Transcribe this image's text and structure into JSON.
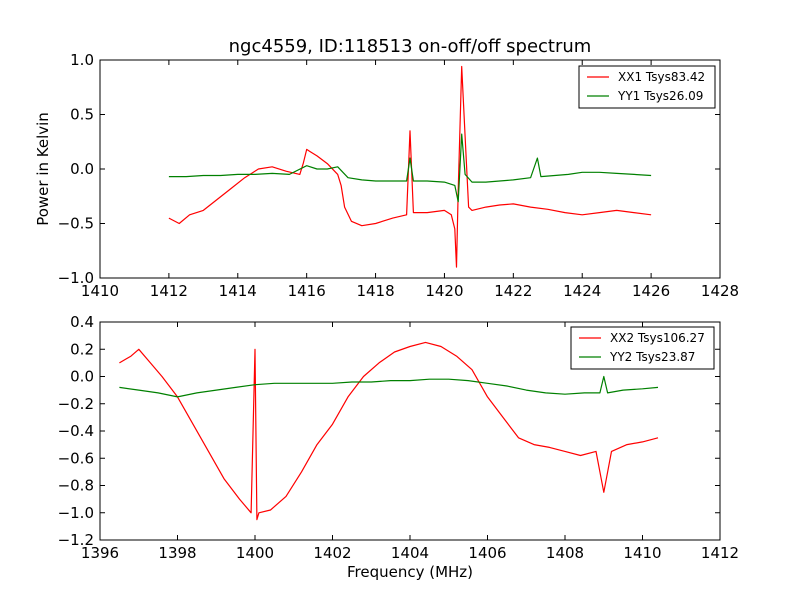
{
  "chart_data": [
    {
      "type": "line",
      "title": "ngc4559, ID:118513 on-off/off spectrum",
      "xlabel": "",
      "ylabel": "Power in Kelvin",
      "xlim": [
        1410,
        1428
      ],
      "ylim": [
        -1.0,
        1.0
      ],
      "x_ticks": [
        "1410",
        "1412",
        "1414",
        "1416",
        "1418",
        "1420",
        "1422",
        "1424",
        "1426",
        "1428"
      ],
      "y_ticks": [
        "−1.0",
        "−0.5",
        "0.0",
        "0.5",
        "1.0"
      ],
      "legend_position": "top-right",
      "grid": false,
      "series": [
        {
          "name": "XX1 Tsys83.42",
          "color": "#ff0000",
          "x": [
            1412.0,
            1412.3,
            1412.6,
            1413.0,
            1413.4,
            1413.8,
            1414.2,
            1414.6,
            1415.0,
            1415.4,
            1415.8,
            1415.9,
            1416.0,
            1416.1,
            1416.3,
            1416.6,
            1416.9,
            1417.0,
            1417.1,
            1417.3,
            1417.6,
            1418.0,
            1418.5,
            1418.9,
            1419.0,
            1419.1,
            1419.5,
            1420.0,
            1420.2,
            1420.3,
            1420.35,
            1420.4,
            1420.5,
            1420.6,
            1420.7,
            1420.8,
            1421.2,
            1421.6,
            1422.0,
            1422.5,
            1423.0,
            1423.5,
            1424.0,
            1424.5,
            1425.0,
            1425.5,
            1426.0
          ],
          "y": [
            -0.45,
            -0.5,
            -0.42,
            -0.38,
            -0.28,
            -0.18,
            -0.08,
            0.0,
            0.02,
            -0.02,
            -0.05,
            0.05,
            0.18,
            0.16,
            0.12,
            0.05,
            -0.05,
            -0.15,
            -0.35,
            -0.48,
            -0.52,
            -0.5,
            -0.45,
            -0.42,
            0.35,
            -0.4,
            -0.4,
            -0.38,
            -0.42,
            -0.55,
            -0.9,
            -0.2,
            0.94,
            0.3,
            -0.35,
            -0.38,
            -0.35,
            -0.33,
            -0.32,
            -0.35,
            -0.37,
            -0.4,
            -0.42,
            -0.4,
            -0.38,
            -0.4,
            -0.42
          ]
        },
        {
          "name": "YY1 Tsys26.09",
          "color": "#008000",
          "x": [
            1412.0,
            1412.5,
            1413.0,
            1413.5,
            1414.0,
            1414.5,
            1415.0,
            1415.5,
            1416.0,
            1416.3,
            1416.6,
            1416.9,
            1417.2,
            1417.6,
            1418.0,
            1418.5,
            1418.9,
            1419.0,
            1419.1,
            1419.5,
            1420.0,
            1420.3,
            1420.4,
            1420.5,
            1420.6,
            1420.8,
            1421.2,
            1421.6,
            1422.0,
            1422.5,
            1422.7,
            1422.8,
            1423.2,
            1423.6,
            1424.0,
            1424.5,
            1425.0,
            1425.5,
            1426.0
          ],
          "y": [
            -0.07,
            -0.07,
            -0.06,
            -0.06,
            -0.05,
            -0.05,
            -0.04,
            -0.05,
            0.03,
            0.0,
            0.0,
            0.02,
            -0.08,
            -0.1,
            -0.11,
            -0.11,
            -0.11,
            0.1,
            -0.11,
            -0.11,
            -0.12,
            -0.15,
            -0.3,
            0.32,
            -0.05,
            -0.12,
            -0.12,
            -0.11,
            -0.1,
            -0.08,
            0.1,
            -0.07,
            -0.06,
            -0.05,
            -0.03,
            -0.03,
            -0.04,
            -0.05,
            -0.06
          ]
        }
      ]
    },
    {
      "type": "line",
      "title": "",
      "xlabel": "Frequency (MHz)",
      "ylabel": "",
      "xlim": [
        1396,
        1412
      ],
      "ylim": [
        -1.2,
        0.4
      ],
      "x_ticks": [
        "1396",
        "1398",
        "1400",
        "1402",
        "1404",
        "1406",
        "1408",
        "1410",
        "1412"
      ],
      "y_ticks": [
        "−1.2",
        "−1.0",
        "−0.8",
        "−0.6",
        "−0.4",
        "−0.2",
        "0.0",
        "0.2",
        "0.4"
      ],
      "legend_position": "top-right",
      "grid": false,
      "series": [
        {
          "name": "XX2 Tsys106.27",
          "color": "#ff0000",
          "x": [
            1396.5,
            1396.8,
            1397.0,
            1397.3,
            1397.6,
            1398.0,
            1398.4,
            1398.8,
            1399.2,
            1399.6,
            1399.9,
            1400.0,
            1400.05,
            1400.1,
            1400.4,
            1400.8,
            1401.2,
            1401.6,
            1402.0,
            1402.4,
            1402.8,
            1403.2,
            1403.6,
            1404.0,
            1404.4,
            1404.8,
            1405.2,
            1405.6,
            1406.0,
            1406.4,
            1406.8,
            1407.2,
            1407.6,
            1408.0,
            1408.4,
            1408.8,
            1409.0,
            1409.2,
            1409.6,
            1410.0,
            1410.4
          ],
          "y": [
            0.1,
            0.15,
            0.2,
            0.1,
            0.0,
            -0.15,
            -0.35,
            -0.55,
            -0.75,
            -0.9,
            -1.0,
            0.2,
            -1.05,
            -1.0,
            -0.98,
            -0.88,
            -0.7,
            -0.5,
            -0.35,
            -0.15,
            0.0,
            0.1,
            0.18,
            0.22,
            0.25,
            0.22,
            0.15,
            0.05,
            -0.15,
            -0.3,
            -0.45,
            -0.5,
            -0.52,
            -0.55,
            -0.58,
            -0.55,
            -0.85,
            -0.55,
            -0.5,
            -0.48,
            -0.45
          ]
        },
        {
          "name": "YY2 Tsys23.87",
          "color": "#008000",
          "x": [
            1396.5,
            1397.0,
            1397.5,
            1398.0,
            1398.5,
            1399.0,
            1399.5,
            1400.0,
            1400.5,
            1401.0,
            1401.5,
            1402.0,
            1402.5,
            1403.0,
            1403.5,
            1404.0,
            1404.5,
            1405.0,
            1405.5,
            1406.0,
            1406.5,
            1407.0,
            1407.5,
            1408.0,
            1408.5,
            1408.9,
            1409.0,
            1409.1,
            1409.5,
            1410.0,
            1410.4
          ],
          "y": [
            -0.08,
            -0.1,
            -0.12,
            -0.15,
            -0.12,
            -0.1,
            -0.08,
            -0.06,
            -0.05,
            -0.05,
            -0.05,
            -0.05,
            -0.04,
            -0.04,
            -0.03,
            -0.03,
            -0.02,
            -0.02,
            -0.03,
            -0.05,
            -0.07,
            -0.1,
            -0.12,
            -0.13,
            -0.12,
            -0.12,
            0.0,
            -0.12,
            -0.1,
            -0.09,
            -0.08
          ]
        }
      ]
    }
  ]
}
